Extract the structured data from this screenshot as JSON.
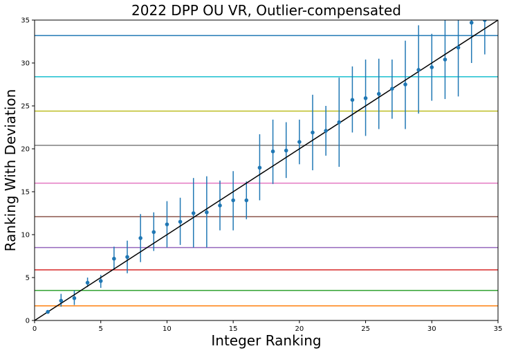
{
  "chart_data": {
    "type": "scatter",
    "title": "2022 DPP OU VR, Outlier-compensated",
    "xlabel": "Integer Ranking",
    "ylabel": "Ranking With Deviation",
    "xlim": [
      0,
      35
    ],
    "ylim": [
      0,
      35
    ],
    "x_ticks": [
      0,
      5,
      10,
      15,
      20,
      25,
      30,
      35
    ],
    "y_ticks": [
      0,
      5,
      10,
      15,
      20,
      25,
      30,
      35
    ],
    "grid": false,
    "legend": "none",
    "point_color": "#1f77b4",
    "diagonal_color": "#000000",
    "tier_lines": [
      {
        "y": 1.7,
        "color": "#ff7f0e"
      },
      {
        "y": 3.5,
        "color": "#2ca02c"
      },
      {
        "y": 5.9,
        "color": "#d62728"
      },
      {
        "y": 8.5,
        "color": "#9467bd"
      },
      {
        "y": 12.1,
        "color": "#8c564b"
      },
      {
        "y": 16.0,
        "color": "#e377c2"
      },
      {
        "y": 20.4,
        "color": "#7f7f7f"
      },
      {
        "y": 24.4,
        "color": "#bcbd22"
      },
      {
        "y": 28.4,
        "color": "#17becf"
      },
      {
        "y": 33.2,
        "color": "#1f77b4"
      }
    ],
    "points": [
      {
        "x": 1,
        "y": 1.0,
        "lo": 1.0,
        "hi": 1.0
      },
      {
        "x": 2,
        "y": 2.3,
        "lo": 1.6,
        "hi": 3.1
      },
      {
        "x": 3,
        "y": 2.6,
        "lo": 1.8,
        "hi": 3.5
      },
      {
        "x": 4,
        "y": 4.4,
        "lo": 3.9,
        "hi": 5.0
      },
      {
        "x": 5,
        "y": 4.6,
        "lo": 3.8,
        "hi": 5.3
      },
      {
        "x": 6,
        "y": 7.2,
        "lo": 5.9,
        "hi": 8.6
      },
      {
        "x": 7,
        "y": 7.4,
        "lo": 5.5,
        "hi": 9.3
      },
      {
        "x": 8,
        "y": 9.6,
        "lo": 6.8,
        "hi": 12.4
      },
      {
        "x": 9,
        "y": 10.3,
        "lo": 8.1,
        "hi": 12.6
      },
      {
        "x": 10,
        "y": 11.2,
        "lo": 8.5,
        "hi": 13.9
      },
      {
        "x": 11,
        "y": 11.5,
        "lo": 8.8,
        "hi": 14.3
      },
      {
        "x": 12,
        "y": 12.5,
        "lo": 8.5,
        "hi": 16.6
      },
      {
        "x": 13,
        "y": 12.6,
        "lo": 8.5,
        "hi": 16.8
      },
      {
        "x": 14,
        "y": 13.4,
        "lo": 10.5,
        "hi": 16.3
      },
      {
        "x": 15,
        "y": 14.0,
        "lo": 10.5,
        "hi": 17.4
      },
      {
        "x": 16,
        "y": 14.0,
        "lo": 11.8,
        "hi": 16.2
      },
      {
        "x": 17,
        "y": 17.8,
        "lo": 14.0,
        "hi": 21.7
      },
      {
        "x": 18,
        "y": 19.7,
        "lo": 15.9,
        "hi": 23.4
      },
      {
        "x": 19,
        "y": 19.8,
        "lo": 16.6,
        "hi": 23.1
      },
      {
        "x": 20,
        "y": 20.8,
        "lo": 18.2,
        "hi": 23.4
      },
      {
        "x": 21,
        "y": 21.9,
        "lo": 17.5,
        "hi": 26.3
      },
      {
        "x": 22,
        "y": 22.1,
        "lo": 19.2,
        "hi": 25.0
      },
      {
        "x": 23,
        "y": 23.1,
        "lo": 17.9,
        "hi": 28.3
      },
      {
        "x": 24,
        "y": 25.7,
        "lo": 21.9,
        "hi": 29.6
      },
      {
        "x": 25,
        "y": 25.9,
        "lo": 21.5,
        "hi": 30.4
      },
      {
        "x": 26,
        "y": 26.4,
        "lo": 22.3,
        "hi": 30.5
      },
      {
        "x": 27,
        "y": 27.0,
        "lo": 23.5,
        "hi": 30.4
      },
      {
        "x": 28,
        "y": 27.5,
        "lo": 22.3,
        "hi": 32.6
      },
      {
        "x": 29,
        "y": 29.2,
        "lo": 24.1,
        "hi": 34.4
      },
      {
        "x": 30,
        "y": 29.5,
        "lo": 25.6,
        "hi": 33.4
      },
      {
        "x": 31,
        "y": 30.4,
        "lo": 25.8,
        "hi": 35.0
      },
      {
        "x": 32,
        "y": 31.8,
        "lo": 26.1,
        "hi": 35.0
      },
      {
        "x": 33,
        "y": 34.7,
        "lo": 30.0,
        "hi": 35.0
      },
      {
        "x": 34,
        "y": 35.0,
        "lo": 31.0,
        "hi": 35.0
      }
    ]
  }
}
